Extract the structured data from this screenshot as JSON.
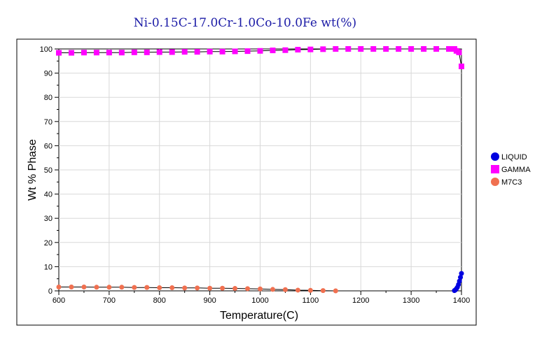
{
  "chart_data": {
    "type": "line",
    "title": "Ni-0.15C-17.0Cr-1.0Co-10.0Fe wt(%)",
    "xlabel": "Temperature(C)",
    "ylabel": "Wt % Phase",
    "xlim": [
      600,
      1400
    ],
    "ylim": [
      0,
      100
    ],
    "xticks": [
      "600",
      "700",
      "800",
      "900",
      "1000",
      "1100",
      "1200",
      "1300",
      "1400"
    ],
    "yticks": [
      "0",
      "10",
      "20",
      "30",
      "40",
      "50",
      "60",
      "70",
      "80",
      "90",
      "100"
    ],
    "grid": true,
    "legend_position": "right",
    "series": [
      {
        "name": "LIQUID",
        "color": "#0000e0",
        "marker": "circle",
        "x": [
          1386,
          1388,
          1390,
          1392,
          1394,
          1396,
          1398,
          1400
        ],
        "y": [
          0.1,
          0.4,
          0.9,
          1.5,
          2.6,
          4.0,
          5.6,
          7.2
        ]
      },
      {
        "name": "GAMMA",
        "color": "#ff00ff",
        "marker": "square",
        "x": [
          600,
          625,
          650,
          675,
          700,
          725,
          750,
          775,
          800,
          825,
          850,
          875,
          900,
          925,
          950,
          975,
          1000,
          1025,
          1050,
          1075,
          1100,
          1125,
          1150,
          1175,
          1200,
          1225,
          1250,
          1275,
          1300,
          1325,
          1350,
          1375,
          1386,
          1390,
          1395,
          1400
        ],
        "y": [
          98.4,
          98.4,
          98.5,
          98.5,
          98.5,
          98.5,
          98.6,
          98.6,
          98.7,
          98.7,
          98.8,
          98.8,
          98.9,
          98.9,
          99.0,
          99.1,
          99.2,
          99.4,
          99.5,
          99.7,
          99.8,
          99.9,
          100.0,
          100.0,
          100.0,
          100.0,
          100.0,
          100.0,
          100.0,
          100.0,
          100.0,
          100.0,
          100.0,
          99.2,
          98.6,
          92.8
        ]
      },
      {
        "name": "M7C3",
        "color": "#f07050",
        "marker": "circle",
        "x": [
          600,
          625,
          650,
          675,
          700,
          725,
          750,
          775,
          800,
          825,
          850,
          875,
          900,
          925,
          950,
          975,
          1000,
          1025,
          1050,
          1075,
          1100,
          1125,
          1150
        ],
        "y": [
          1.6,
          1.6,
          1.6,
          1.5,
          1.5,
          1.5,
          1.4,
          1.4,
          1.3,
          1.3,
          1.2,
          1.2,
          1.1,
          1.1,
          1.0,
          0.9,
          0.8,
          0.6,
          0.5,
          0.3,
          0.2,
          0.1,
          0.0
        ]
      }
    ]
  }
}
